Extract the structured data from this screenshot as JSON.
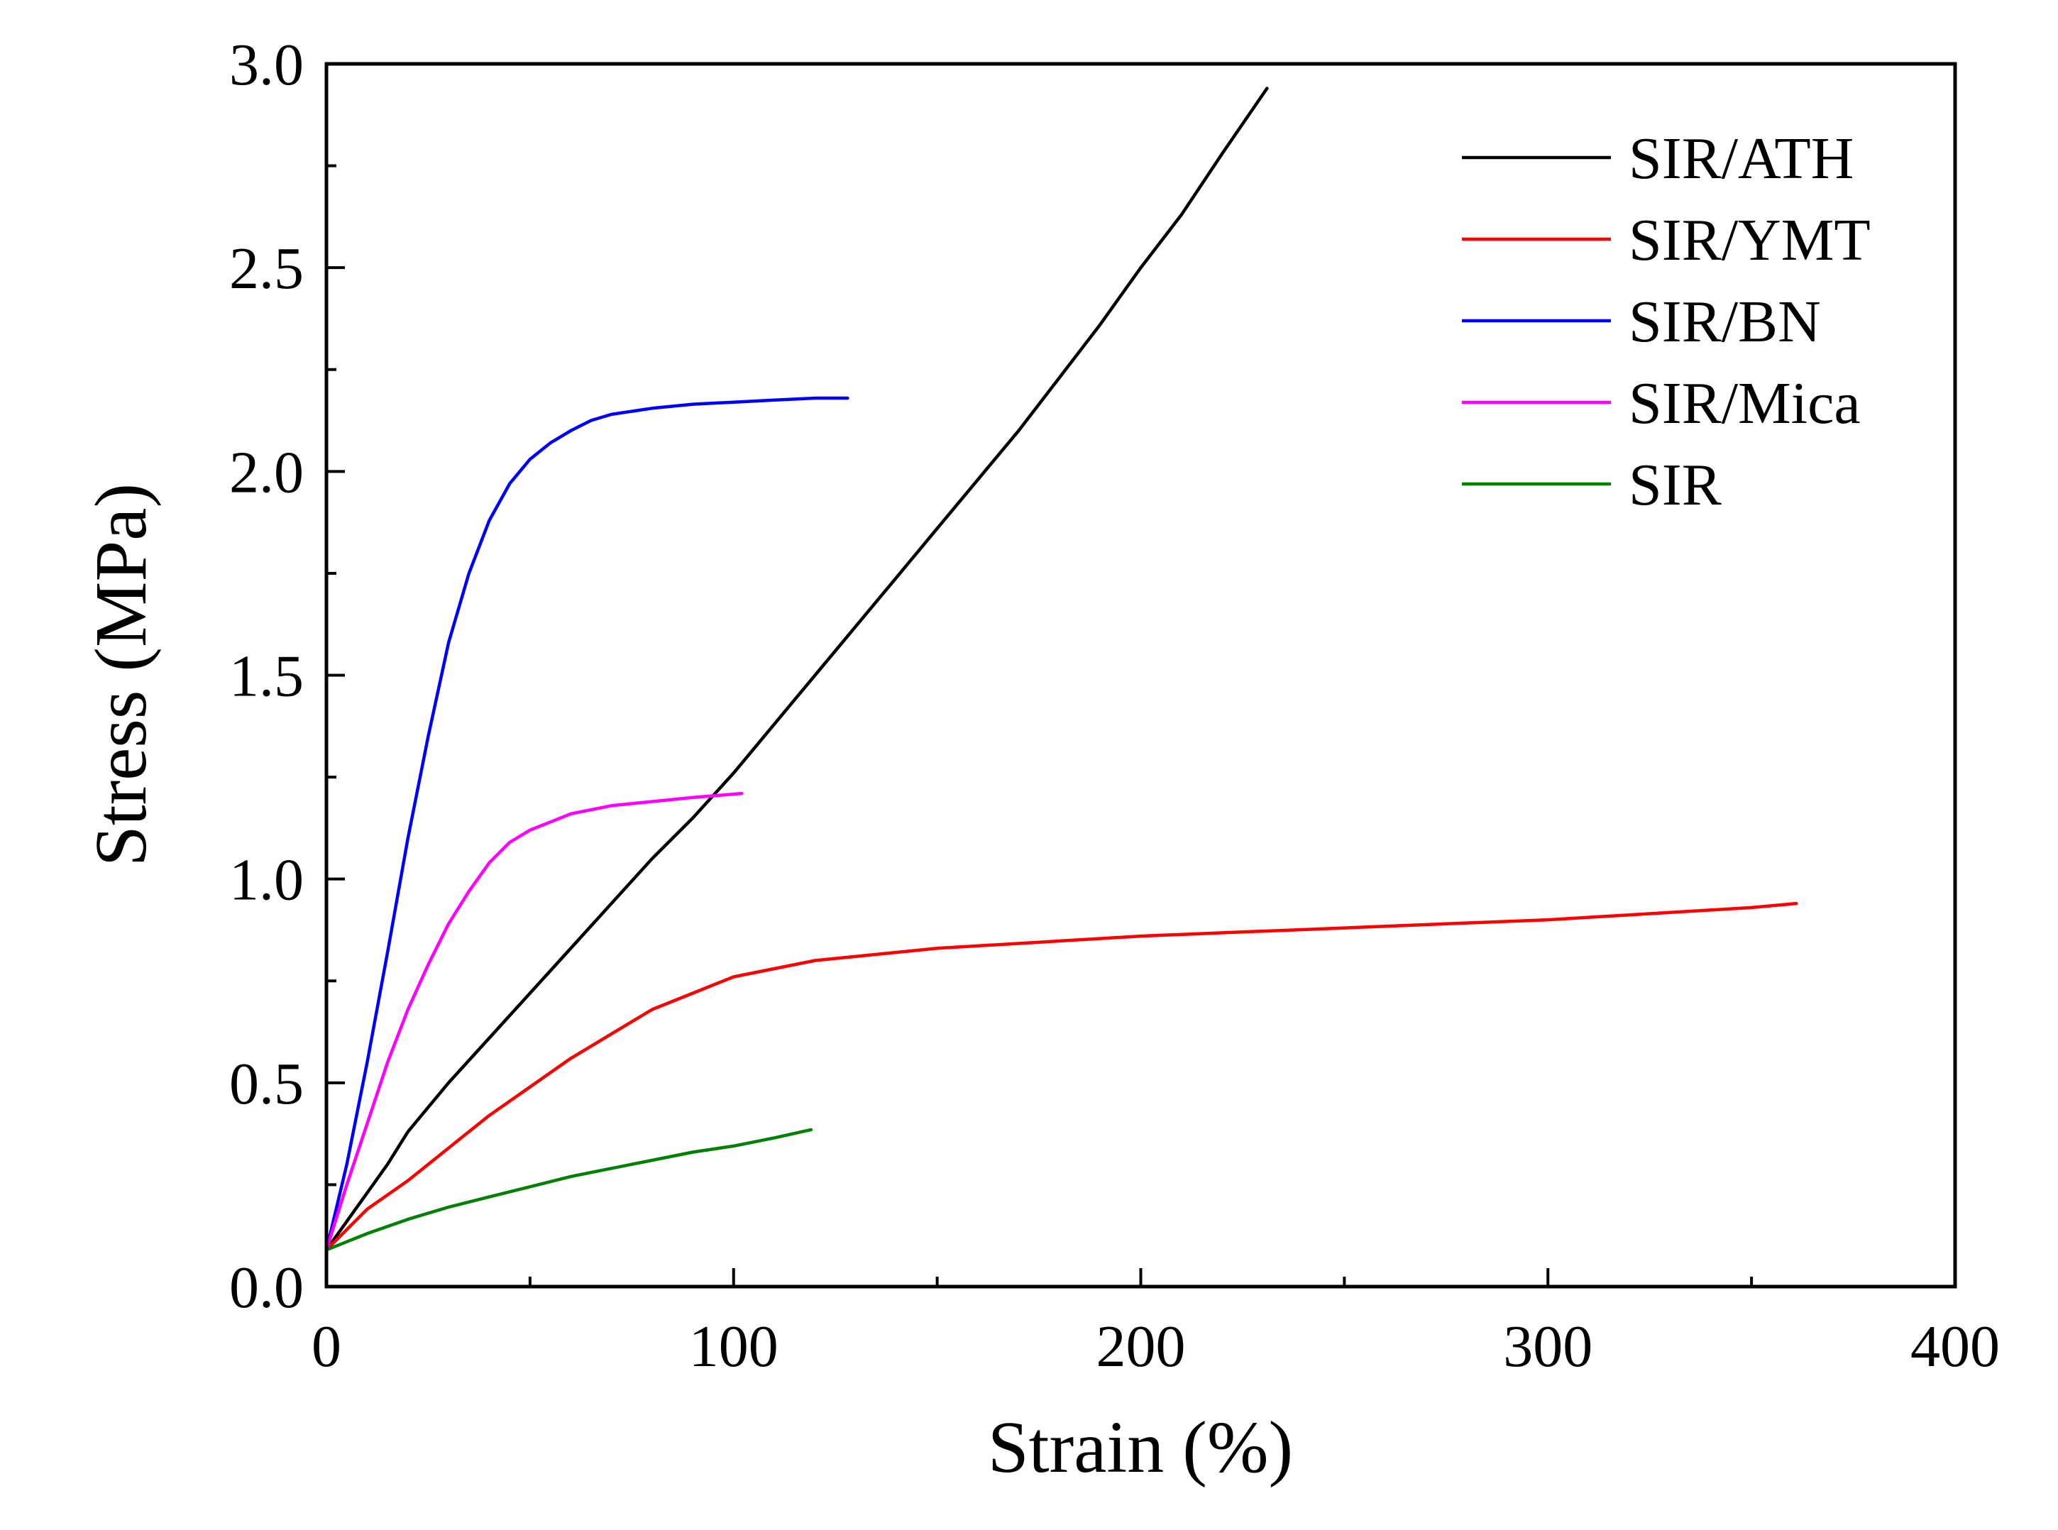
{
  "chart_data": {
    "type": "line",
    "title": "",
    "xlabel": "Strain (%)",
    "ylabel": "Stress (MPa)",
    "xlim": [
      0,
      400
    ],
    "ylim": [
      0,
      3.0
    ],
    "x_ticks": [
      0,
      100,
      200,
      300,
      400
    ],
    "x_tick_labels": [
      "0",
      "100",
      "200",
      "300",
      "400"
    ],
    "y_ticks": [
      0.0,
      0.5,
      1.0,
      1.5,
      2.0,
      2.5,
      3.0
    ],
    "y_tick_labels": [
      "0.0",
      "0.5",
      "1.0",
      "1.5",
      "2.0",
      "2.5",
      "3.0"
    ],
    "grid": false,
    "legend_position": "top-right",
    "series": [
      {
        "name": "SIR/ATH",
        "color": "#000000",
        "points": [
          [
            0,
            0.09
          ],
          [
            5,
            0.16
          ],
          [
            10,
            0.23
          ],
          [
            15,
            0.3
          ],
          [
            20,
            0.38
          ],
          [
            25,
            0.44
          ],
          [
            30,
            0.5
          ],
          [
            40,
            0.61
          ],
          [
            50,
            0.72
          ],
          [
            60,
            0.83
          ],
          [
            70,
            0.94
          ],
          [
            80,
            1.05
          ],
          [
            90,
            1.15
          ],
          [
            100,
            1.26
          ],
          [
            110,
            1.38
          ],
          [
            120,
            1.5
          ],
          [
            130,
            1.62
          ],
          [
            140,
            1.74
          ],
          [
            150,
            1.86
          ],
          [
            160,
            1.98
          ],
          [
            170,
            2.1
          ],
          [
            180,
            2.23
          ],
          [
            190,
            2.36
          ],
          [
            200,
            2.5
          ],
          [
            210,
            2.63
          ],
          [
            220,
            2.78
          ],
          [
            231,
            2.94
          ]
        ]
      },
      {
        "name": "SIR/YMT",
        "color": "#ff0000",
        "points": [
          [
            0,
            0.09
          ],
          [
            5,
            0.14
          ],
          [
            10,
            0.19
          ],
          [
            20,
            0.26
          ],
          [
            30,
            0.34
          ],
          [
            40,
            0.42
          ],
          [
            50,
            0.49
          ],
          [
            60,
            0.56
          ],
          [
            70,
            0.62
          ],
          [
            80,
            0.68
          ],
          [
            90,
            0.72
          ],
          [
            100,
            0.76
          ],
          [
            110,
            0.78
          ],
          [
            120,
            0.8
          ],
          [
            130,
            0.81
          ],
          [
            140,
            0.82
          ],
          [
            150,
            0.83
          ],
          [
            175,
            0.845
          ],
          [
            200,
            0.86
          ],
          [
            225,
            0.87
          ],
          [
            250,
            0.88
          ],
          [
            275,
            0.89
          ],
          [
            300,
            0.9
          ],
          [
            325,
            0.915
          ],
          [
            350,
            0.93
          ],
          [
            361,
            0.94
          ]
        ]
      },
      {
        "name": "SIR/BN",
        "color": "#0000ff",
        "points": [
          [
            0,
            0.09
          ],
          [
            5,
            0.3
          ],
          [
            10,
            0.55
          ],
          [
            15,
            0.82
          ],
          [
            20,
            1.1
          ],
          [
            25,
            1.35
          ],
          [
            30,
            1.58
          ],
          [
            35,
            1.75
          ],
          [
            40,
            1.88
          ],
          [
            45,
            1.97
          ],
          [
            50,
            2.03
          ],
          [
            55,
            2.07
          ],
          [
            60,
            2.1
          ],
          [
            65,
            2.125
          ],
          [
            70,
            2.14
          ],
          [
            80,
            2.155
          ],
          [
            90,
            2.165
          ],
          [
            100,
            2.17
          ],
          [
            110,
            2.175
          ],
          [
            120,
            2.18
          ],
          [
            128,
            2.18
          ]
        ]
      },
      {
        "name": "SIR/Mica",
        "color": "#ff00ff",
        "points": [
          [
            0,
            0.09
          ],
          [
            5,
            0.25
          ],
          [
            10,
            0.4
          ],
          [
            15,
            0.55
          ],
          [
            20,
            0.68
          ],
          [
            25,
            0.79
          ],
          [
            30,
            0.89
          ],
          [
            35,
            0.97
          ],
          [
            40,
            1.04
          ],
          [
            45,
            1.09
          ],
          [
            50,
            1.12
          ],
          [
            55,
            1.14
          ],
          [
            60,
            1.16
          ],
          [
            70,
            1.18
          ],
          [
            80,
            1.19
          ],
          [
            90,
            1.2
          ],
          [
            102,
            1.21
          ]
        ]
      },
      {
        "name": "SIR",
        "color": "#008000",
        "points": [
          [
            0,
            0.09
          ],
          [
            5,
            0.11
          ],
          [
            10,
            0.13
          ],
          [
            20,
            0.165
          ],
          [
            30,
            0.195
          ],
          [
            40,
            0.22
          ],
          [
            50,
            0.245
          ],
          [
            60,
            0.27
          ],
          [
            70,
            0.29
          ],
          [
            80,
            0.31
          ],
          [
            90,
            0.33
          ],
          [
            100,
            0.345
          ],
          [
            110,
            0.365
          ],
          [
            119,
            0.385
          ]
        ]
      }
    ]
  }
}
